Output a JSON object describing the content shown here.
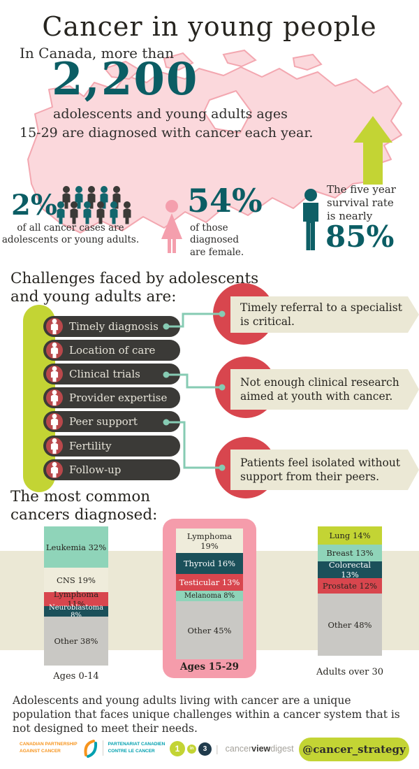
{
  "palette": {
    "teal": "#0b5d64",
    "lime": "#c3d434",
    "red": "#d8464e",
    "cream": "#ebe8d5",
    "dark_pill": "#3b3a37",
    "pink_map": "#fbd8dc",
    "pink_highlight": "#f59cab",
    "mint": "#8fd4b9",
    "dark_teal_segment": "#1b505a",
    "gray_segment": "#c9c8c4"
  },
  "header": {
    "title": "Cancer in young people",
    "intro_prefix": "In Canada, more than",
    "big_number": "2,200",
    "intro_line1": "adolescents and young adults ages",
    "intro_line2": "15-29 are diagnosed with cancer each year."
  },
  "stats": {
    "aya_share": {
      "value": "2%",
      "caption": "of all cancer cases are adolescents or young adults."
    },
    "female_share": {
      "value": "54%",
      "caption": "of those diagnosed are female."
    },
    "survival": {
      "lead": "The five year survival rate is nearly",
      "value": "85%"
    }
  },
  "challenges": {
    "heading": "Challenges faced by adolescents and young adults are:",
    "items": [
      "Timely diagnosis",
      "Location of care",
      "Clinical trials",
      "Provider expertise",
      "Peer support",
      "Fertility",
      "Follow-up"
    ],
    "callouts": [
      "Timely referral to a specialist is critical.",
      "Not enough clinical research aimed at youth with cancer.",
      "Patients feel isolated without support from their peers."
    ]
  },
  "cancers_heading": "The most common cancers diagnosed:",
  "chart_data": [
    {
      "type": "bar",
      "title": "Ages 0-14",
      "orientation": "vertical",
      "stacked": true,
      "unit": "percent",
      "segments": [
        {
          "name": "Leukemia",
          "label": "Leukemia 32%",
          "value": 32,
          "color": "#8fd4b9",
          "text_color": "#26241f"
        },
        {
          "name": "CNS",
          "label": "CNS 19%",
          "value": 19,
          "color": "#efecdb",
          "text_color": "#26241f"
        },
        {
          "name": "Lymphoma",
          "label": "Lymphoma 11%",
          "value": 11,
          "color": "#d8464e",
          "text_color": "#26241f"
        },
        {
          "name": "Neuroblastoma",
          "label": "Neuroblastoma 8%",
          "value": 8,
          "color": "#1b505a",
          "text_color": "#ffffff"
        },
        {
          "name": "Other",
          "label": "Other 38%",
          "value": 38,
          "color": "#c9c8c4",
          "text_color": "#26241f"
        }
      ]
    },
    {
      "type": "bar",
      "title": "Ages 15-29",
      "orientation": "vertical",
      "stacked": true,
      "unit": "percent",
      "highlighted": true,
      "segments": [
        {
          "name": "Lymphoma",
          "label": "Lymphoma 19%",
          "value": 19,
          "color": "#efecdb",
          "text_color": "#26241f"
        },
        {
          "name": "Thyroid",
          "label": "Thyroid 16%",
          "value": 16,
          "color": "#1b505a",
          "text_color": "#ffffff"
        },
        {
          "name": "Testicular",
          "label": "Testicular 13%",
          "value": 13,
          "color": "#d8464e",
          "text_color": "#ffffff"
        },
        {
          "name": "Melanoma",
          "label": "Melanoma 8%",
          "value": 8,
          "color": "#8fd4b9",
          "text_color": "#26241f"
        },
        {
          "name": "Other",
          "label": "Other 45%",
          "value": 45,
          "color": "#c9c8c4",
          "text_color": "#26241f"
        }
      ]
    },
    {
      "type": "bar",
      "title": "Adults over 30",
      "orientation": "vertical",
      "stacked": true,
      "unit": "percent",
      "segments": [
        {
          "name": "Lung",
          "label": "Lung 14%",
          "value": 14,
          "color": "#c3d434",
          "text_color": "#26241f"
        },
        {
          "name": "Breast",
          "label": "Breast 13%",
          "value": 13,
          "color": "#8fd4b9",
          "text_color": "#26241f"
        },
        {
          "name": "Colorectal",
          "label": "Colorectal 13%",
          "value": 13,
          "color": "#1b505a",
          "text_color": "#ffffff"
        },
        {
          "name": "Prostate",
          "label": "Prostate 12%",
          "value": 12,
          "color": "#d8464e",
          "text_color": "#26241f"
        },
        {
          "name": "Other",
          "label": "Other 48%",
          "value": 48,
          "color": "#c9c8c4",
          "text_color": "#26241f"
        }
      ]
    }
  ],
  "closing": "Adolescents and young adults living with cancer are a unique population that faces unique challenges within a cancer system that is not designed to meet their needs.",
  "footer": {
    "cpac": {
      "en_line1": "CANADIAN PARTNERSHIP",
      "en_line2": "AGAINST CANCER",
      "fr_line1": "PARTENARIAT CANADIEN",
      "fr_line2": "CONTRE LE CANCER"
    },
    "one_in_three": {
      "one": "1",
      "in": "in",
      "three": "3"
    },
    "digest": {
      "part1": "cancer",
      "part2": "view",
      "part3": "digest"
    },
    "handle": "@cancer_strategy"
  }
}
